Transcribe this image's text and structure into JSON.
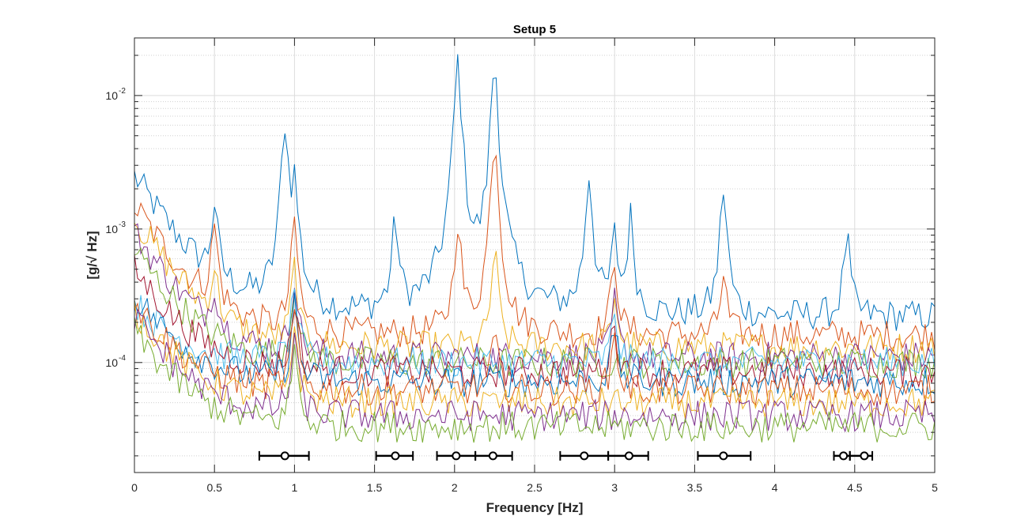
{
  "chart_data": {
    "type": "line",
    "title": "Setup 5",
    "xlabel": "Frequency [Hz]",
    "ylabel": "[g/√ Hz]",
    "xlim": [
      0,
      5
    ],
    "ylim": [
      1.5e-05,
      0.027
    ],
    "yscale": "log",
    "grid": true,
    "minor_grid": true,
    "xticks": [
      "0",
      "0.5",
      "1",
      "1.5",
      "2",
      "2.5",
      "3",
      "3.5",
      "4",
      "4.5",
      "5"
    ],
    "yticks": [
      {
        "base": "10",
        "exp": "-4",
        "value": 0.0001
      },
      {
        "base": "10",
        "exp": "-3",
        "value": 0.001
      },
      {
        "base": "10",
        "exp": "-2",
        "value": 0.01
      }
    ],
    "colors": [
      "#0072BD",
      "#D95319",
      "#EDB120",
      "#7E2F8E",
      "#77AC30",
      "#4DBEEE",
      "#A2142F"
    ],
    "series": [
      {
        "color": "#0072BD",
        "base": 0.00022,
        "start": 0.0025,
        "peaks": [
          [
            0.5,
            0.0011
          ],
          [
            0.94,
            0.006
          ],
          [
            1.0,
            0.002
          ],
          [
            1.63,
            0.0009
          ],
          [
            2.02,
            0.018
          ],
          [
            2.25,
            0.018
          ],
          [
            2.84,
            0.0024
          ],
          [
            3.0,
            0.00065
          ],
          [
            3.1,
            0.001
          ],
          [
            3.68,
            0.0018
          ],
          [
            4.45,
            0.00065
          ]
        ]
      },
      {
        "color": "#D95319",
        "base": 0.00016,
        "start": 0.0015,
        "peaks": [
          [
            0.5,
            0.0008
          ],
          [
            1.0,
            0.00095
          ],
          [
            2.02,
            0.001
          ],
          [
            2.25,
            0.005
          ],
          [
            3.0,
            0.00045
          ],
          [
            3.68,
            0.0003
          ]
        ]
      },
      {
        "color": "#EDB120",
        "base": 0.00013,
        "start": 0.0012,
        "peaks": [
          [
            0.5,
            0.0003
          ],
          [
            1.0,
            0.0004
          ],
          [
            2.25,
            0.00055
          ],
          [
            3.0,
            0.0002
          ]
        ]
      },
      {
        "color": "#7E2F8E",
        "base": 0.00011,
        "start": 0.00095,
        "peaks": [
          [
            0.5,
            0.0002
          ],
          [
            1.0,
            0.00035
          ],
          [
            3.0,
            0.00018
          ]
        ]
      },
      {
        "color": "#77AC30",
        "base": 0.0001,
        "start": 0.0007,
        "peaks": [
          [
            1.0,
            0.0003
          ]
        ]
      },
      {
        "color": "#4DBEEE",
        "base": 0.0001,
        "start": 0.00028,
        "peaks": [
          [
            1.0,
            0.00028
          ],
          [
            3.0,
            0.00014
          ]
        ]
      },
      {
        "color": "#A2142F",
        "base": 8.5e-05,
        "start": 0.0005,
        "peaks": [
          [
            1.0,
            0.00022
          ],
          [
            3.0,
            0.00012
          ]
        ]
      },
      {
        "color": "#0072BD",
        "base": 7.2e-05,
        "start": 0.00032,
        "peaks": [
          [
            1.0,
            0.0002
          ],
          [
            3.0,
            0.00011
          ]
        ]
      },
      {
        "color": "#D95319",
        "base": 6.2e-05,
        "start": 0.00028,
        "peaks": [
          [
            1.0,
            0.00018
          ],
          [
            2.25,
            0.0001
          ],
          [
            3.0,
            0.0001
          ]
        ]
      },
      {
        "color": "#EDB120",
        "base": 5e-05,
        "start": 0.00025,
        "peaks": [
          [
            1.0,
            0.00015
          ]
        ]
      },
      {
        "color": "#7E2F8E",
        "base": 4e-05,
        "start": 0.00022,
        "peaks": [
          [
            1.0,
            0.00012
          ]
        ]
      },
      {
        "color": "#77AC30",
        "base": 3.3e-05,
        "start": 0.00017,
        "peaks": [
          [
            1.0,
            0.0001
          ]
        ]
      }
    ],
    "errorbar_y": 2e-05,
    "errorbars": [
      {
        "x": 0.94,
        "lo": 0.78,
        "hi": 1.09
      },
      {
        "x": 1.63,
        "lo": 1.51,
        "hi": 1.74
      },
      {
        "x": 2.01,
        "lo": 1.89,
        "hi": 2.13
      },
      {
        "x": 2.24,
        "lo": 2.13,
        "hi": 2.36
      },
      {
        "x": 2.81,
        "lo": 2.66,
        "hi": 2.96
      },
      {
        "x": 3.09,
        "lo": 2.96,
        "hi": 3.21
      },
      {
        "x": 3.68,
        "lo": 3.52,
        "hi": 3.85
      },
      {
        "x": 4.43,
        "lo": 4.37,
        "hi": 4.47
      },
      {
        "x": 4.56,
        "lo": 4.47,
        "hi": 4.61
      }
    ]
  }
}
